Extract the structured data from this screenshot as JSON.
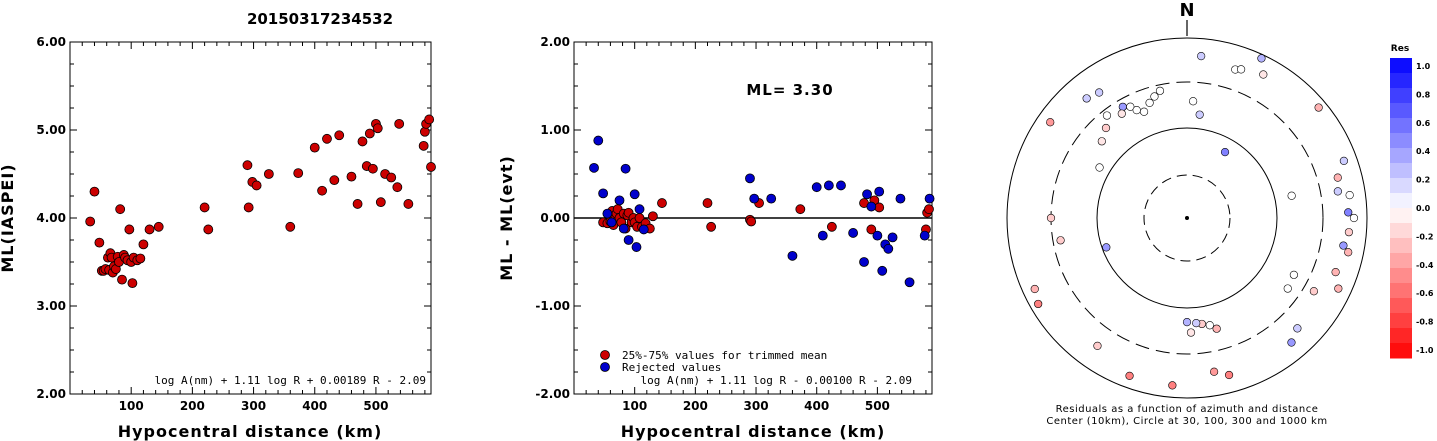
{
  "title": "20150317234532",
  "colors": {
    "accepted": "#cc0000",
    "rejected": "#0000cc",
    "residual_neg": "#ff0000",
    "residual_pos": "#0000ff"
  },
  "chart_data": [
    {
      "type": "scatter",
      "name": "ml-vs-distance",
      "xlabel": "Hypocentral distance (km)",
      "ylabel": "ML(IASPEI)",
      "xlim": [
        0,
        590
      ],
      "ylim": [
        2.0,
        6.0
      ],
      "xticks": [
        "100",
        "200",
        "300",
        "400",
        "500"
      ],
      "yticks": [
        "2.00",
        "3.00",
        "4.00",
        "5.00",
        "6.00"
      ],
      "formula": "log A(nm) + 1.11 log R + 0.00189 R - 2.09",
      "series": [
        {
          "color": "#cc0000",
          "points": [
            [
              33,
              3.96
            ],
            [
              40,
              4.3
            ],
            [
              48,
              3.72
            ],
            [
              52,
              3.4
            ],
            [
              55,
              3.4
            ],
            [
              58,
              3.42
            ],
            [
              62,
              3.55
            ],
            [
              64,
              3.41
            ],
            [
              66,
              3.6
            ],
            [
              68,
              3.55
            ],
            [
              70,
              3.38
            ],
            [
              72,
              3.45
            ],
            [
              75,
              3.42
            ],
            [
              78,
              3.56
            ],
            [
              80,
              3.5
            ],
            [
              82,
              4.1
            ],
            [
              85,
              3.3
            ],
            [
              88,
              3.58
            ],
            [
              90,
              3.55
            ],
            [
              94,
              3.52
            ],
            [
              97,
              3.87
            ],
            [
              100,
              3.5
            ],
            [
              102,
              3.26
            ],
            [
              104,
              3.55
            ],
            [
              110,
              3.52
            ],
            [
              115,
              3.54
            ],
            [
              120,
              3.7
            ],
            [
              130,
              3.87
            ],
            [
              145,
              3.9
            ],
            [
              220,
              4.12
            ],
            [
              226,
              3.87
            ],
            [
              290,
              4.6
            ],
            [
              292,
              4.12
            ],
            [
              298,
              4.41
            ],
            [
              305,
              4.37
            ],
            [
              325,
              4.5
            ],
            [
              360,
              3.9
            ],
            [
              373,
              4.51
            ],
            [
              400,
              4.8
            ],
            [
              412,
              4.31
            ],
            [
              420,
              4.9
            ],
            [
              432,
              4.43
            ],
            [
              440,
              4.94
            ],
            [
              460,
              4.47
            ],
            [
              470,
              4.16
            ],
            [
              478,
              4.87
            ],
            [
              485,
              4.59
            ],
            [
              490,
              4.96
            ],
            [
              495,
              4.56
            ],
            [
              500,
              5.07
            ],
            [
              503,
              5.02
            ],
            [
              508,
              4.18
            ],
            [
              515,
              4.5
            ],
            [
              525,
              4.46
            ],
            [
              535,
              4.35
            ],
            [
              538,
              5.07
            ],
            [
              553,
              4.16
            ],
            [
              578,
              4.82
            ],
            [
              580,
              4.98
            ],
            [
              582,
              5.07
            ],
            [
              587,
              5.12
            ],
            [
              590,
              4.58
            ]
          ]
        }
      ]
    },
    {
      "type": "scatter",
      "name": "residual-vs-distance",
      "xlabel": "Hypocentral distance (km)",
      "ylabel": "ML - ML(evt)",
      "xlim": [
        0,
        590
      ],
      "ylim": [
        -2.0,
        2.0
      ],
      "xticks": [
        "100",
        "200",
        "300",
        "400",
        "500"
      ],
      "yticks": [
        "-2.00",
        "-1.00",
        "0.00",
        "1.00",
        "2.00"
      ],
      "annotation": "ML= 3.30",
      "formula": "log A(nm) + 1.11 log R - 0.00100 R - 2.09",
      "series": [
        {
          "name": "25%-75% values for trimmed mean",
          "color": "#cc0000",
          "points": [
            [
              48,
              -0.05
            ],
            [
              55,
              -0.06
            ],
            [
              60,
              -0.04
            ],
            [
              63,
              0.08
            ],
            [
              65,
              -0.08
            ],
            [
              68,
              0.03
            ],
            [
              70,
              0.05
            ],
            [
              72,
              0.1
            ],
            [
              75,
              0.0
            ],
            [
              78,
              -0.05
            ],
            [
              82,
              0.05
            ],
            [
              85,
              -0.12
            ],
            [
              88,
              0.03
            ],
            [
              90,
              0.06
            ],
            [
              95,
              -0.05
            ],
            [
              98,
              0.0
            ],
            [
              100,
              -0.05
            ],
            [
              104,
              -0.1
            ],
            [
              108,
              0.0
            ],
            [
              112,
              -0.1
            ],
            [
              118,
              -0.06
            ],
            [
              125,
              -0.12
            ],
            [
              130,
              0.02
            ],
            [
              145,
              0.17
            ],
            [
              220,
              0.17
            ],
            [
              226,
              -0.1
            ],
            [
              290,
              -0.02
            ],
            [
              292,
              -0.04
            ],
            [
              305,
              0.17
            ],
            [
              373,
              0.1
            ],
            [
              425,
              -0.1
            ],
            [
              478,
              0.17
            ],
            [
              490,
              -0.13
            ],
            [
              495,
              0.2
            ],
            [
              503,
              0.12
            ],
            [
              580,
              -0.13
            ],
            [
              582,
              0.06
            ],
            [
              585,
              0.1
            ]
          ]
        },
        {
          "name": "Rejected values",
          "color": "#0000cc",
          "points": [
            [
              33,
              0.57
            ],
            [
              40,
              0.88
            ],
            [
              48,
              0.28
            ],
            [
              55,
              0.05
            ],
            [
              62,
              -0.05
            ],
            [
              75,
              0.2
            ],
            [
              82,
              -0.12
            ],
            [
              85,
              0.56
            ],
            [
              90,
              -0.25
            ],
            [
              100,
              0.27
            ],
            [
              103,
              -0.33
            ],
            [
              108,
              0.1
            ],
            [
              115,
              -0.13
            ],
            [
              290,
              0.45
            ],
            [
              297,
              0.22
            ],
            [
              325,
              0.22
            ],
            [
              360,
              -0.43
            ],
            [
              400,
              0.35
            ],
            [
              410,
              -0.2
            ],
            [
              420,
              0.37
            ],
            [
              440,
              0.37
            ],
            [
              460,
              -0.17
            ],
            [
              478,
              -0.5
            ],
            [
              483,
              0.27
            ],
            [
              490,
              0.13
            ],
            [
              500,
              -0.2
            ],
            [
              503,
              0.3
            ],
            [
              508,
              -0.6
            ],
            [
              513,
              -0.3
            ],
            [
              518,
              -0.35
            ],
            [
              525,
              -0.22
            ],
            [
              538,
              0.22
            ],
            [
              553,
              -0.73
            ],
            [
              578,
              -0.2
            ],
            [
              586,
              0.22
            ]
          ]
        }
      ]
    },
    {
      "type": "polar-scatter",
      "name": "residuals-azimuth-distance",
      "caption": [
        "Residuals as a function of azimuth and distance",
        "Center (10km), Circle at 30, 100, 300 and 1000 km"
      ],
      "north_label": "N",
      "rings_km": [
        30,
        100,
        300,
        1000
      ],
      "colorbar": {
        "title": "Res",
        "labels": [
          "1.0",
          "0.8",
          "0.6",
          "0.4",
          "0.2",
          "0.0",
          "-0.2",
          "-0.4",
          "-0.6",
          "-0.8",
          "-1.0"
        ]
      },
      "stations": [
        {
          "az": 25,
          "dist": 900,
          "res": 0.3
        },
        {
          "az": 5,
          "dist": 620,
          "res": 0.2
        },
        {
          "az": 28,
          "dist": 620,
          "res": -0.1
        },
        {
          "az": 18,
          "dist": 520,
          "res": 0.0
        },
        {
          "az": 20,
          "dist": 550,
          "res": 0.0
        },
        {
          "az": 50,
          "dist": 800,
          "res": -0.3
        },
        {
          "az": 305,
          "dist": 700,
          "res": -0.4
        },
        {
          "az": 320,
          "dist": 520,
          "res": 0.2
        },
        {
          "az": 325,
          "dist": 480,
          "res": 0.2
        },
        {
          "az": 330,
          "dist": 250,
          "res": 0.4
        },
        {
          "az": 333,
          "dist": 230,
          "res": 0.0
        },
        {
          "az": 328,
          "dist": 220,
          "res": -0.1
        },
        {
          "az": 335,
          "dist": 200,
          "res": 0.0
        },
        {
          "az": 322,
          "dist": 260,
          "res": 0.0
        },
        {
          "az": 318,
          "dist": 210,
          "res": -0.2
        },
        {
          "az": 338,
          "dist": 180,
          "res": 0.0
        },
        {
          "az": 342,
          "dist": 210,
          "res": 0.0
        },
        {
          "az": 345,
          "dist": 235,
          "res": 0.0
        },
        {
          "az": 348,
          "dist": 260,
          "res": 0.0
        },
        {
          "az": 312,
          "dist": 180,
          "res": -0.1
        },
        {
          "az": 3,
          "dist": 190,
          "res": 0.0
        },
        {
          "az": 7,
          "dist": 140,
          "res": 0.2
        },
        {
          "az": 30,
          "dist": 70,
          "res": 0.5
        },
        {
          "az": 78,
          "dist": 150,
          "res": 0.0
        },
        {
          "az": 250,
          "dist": 90,
          "res": 0.4
        },
        {
          "az": 260,
          "dist": 250,
          "res": -0.2
        },
        {
          "az": 300,
          "dist": 130,
          "res": 0.0
        },
        {
          "az": 80,
          "dist": 480,
          "res": 0.2
        },
        {
          "az": 75,
          "dist": 520,
          "res": -0.3
        },
        {
          "az": 82,
          "dist": 650,
          "res": 0.0
        },
        {
          "az": 70,
          "dist": 700,
          "res": 0.2
        },
        {
          "az": 88,
          "dist": 600,
          "res": 0.5
        },
        {
          "az": 90,
          "dist": 700,
          "res": 0.0
        },
        {
          "az": 95,
          "dist": 620,
          "res": -0.2
        },
        {
          "az": 100,
          "dist": 560,
          "res": 0.4
        },
        {
          "az": 102,
          "dist": 660,
          "res": -0.3
        },
        {
          "az": 110,
          "dist": 550,
          "res": -0.3
        },
        {
          "az": 115,
          "dist": 700,
          "res": -0.3
        },
        {
          "az": 120,
          "dist": 400,
          "res": -0.2
        },
        {
          "az": 125,
          "dist": 220,
          "res": 0.0
        },
        {
          "az": 118,
          "dist": 210,
          "res": 0.0
        },
        {
          "az": 135,
          "dist": 520,
          "res": 0.2
        },
        {
          "az": 140,
          "dist": 620,
          "res": 0.4
        },
        {
          "az": 165,
          "dist": 180,
          "res": -0.3
        },
        {
          "az": 168,
          "dist": 160,
          "res": 0.0
        },
        {
          "az": 172,
          "dist": 150,
          "res": -0.2
        },
        {
          "az": 175,
          "dist": 145,
          "res": 0.2
        },
        {
          "az": 180,
          "dist": 140,
          "res": 0.3
        },
        {
          "az": 178,
          "dist": 180,
          "res": -0.1
        },
        {
          "az": 185,
          "dist": 720,
          "res": -0.5
        },
        {
          "az": 170,
          "dist": 520,
          "res": -0.4
        },
        {
          "az": 165,
          "dist": 620,
          "res": -0.5
        },
        {
          "az": 200,
          "dist": 720,
          "res": -0.5
        },
        {
          "az": 215,
          "dist": 520,
          "res": -0.2
        },
        {
          "az": 240,
          "dist": 800,
          "res": -0.5
        },
        {
          "az": 245,
          "dist": 720,
          "res": -0.3
        },
        {
          "az": 270,
          "dist": 300,
          "res": -0.2
        }
      ]
    }
  ]
}
